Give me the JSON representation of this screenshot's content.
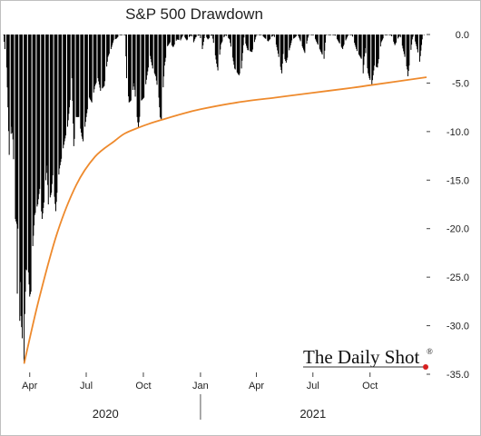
{
  "chart_data": {
    "type": "bar",
    "title": "S&P 500 Drawdown",
    "xlabel": "",
    "ylabel": "",
    "ylim": [
      -35,
      0
    ],
    "yticks": [
      "0.0",
      "-5.0",
      "-10.0",
      "-15.0",
      "-20.0",
      "-25.0",
      "-30.0",
      "-35.0"
    ],
    "ytick_values": [
      0,
      -5,
      -10,
      -15,
      -20,
      -25,
      -30,
      -35
    ],
    "xlim": [
      "2020-02-19",
      "2021-12-31"
    ],
    "xticks": [
      {
        "label": "Apr",
        "date": "2020-04-01"
      },
      {
        "label": "Jul",
        "date": "2020-07-01"
      },
      {
        "label": "Oct",
        "date": "2020-10-01"
      },
      {
        "label": "Jan",
        "date": "2021-01-01"
      },
      {
        "label": "Apr",
        "date": "2021-04-01"
      },
      {
        "label": "Jul",
        "date": "2021-07-01"
      },
      {
        "label": "Oct",
        "date": "2021-10-01"
      }
    ],
    "year_labels": [
      {
        "label": "2020",
        "date": "2020-08-01"
      },
      {
        "label": "2021",
        "date": "2021-07-01"
      }
    ],
    "year_divider_date": "2021-01-01",
    "axis_side": "right",
    "grid": false,
    "legend": "none",
    "bar_color": "#000000",
    "series": [
      {
        "kind": "bar",
        "color": "#000000",
        "points": [
          [
            "2020-02-19",
            0
          ],
          [
            "2020-02-21",
            -1.5
          ],
          [
            "2020-02-24",
            -3.4
          ],
          [
            "2020-02-26",
            -7.5
          ],
          [
            "2020-02-28",
            -12.4
          ],
          [
            "2020-03-03",
            -9.5
          ],
          [
            "2020-03-05",
            -10.8
          ],
          [
            "2020-03-09",
            -19
          ],
          [
            "2020-03-11",
            -19.5
          ],
          [
            "2020-03-12",
            -26.7
          ],
          [
            "2020-03-13",
            -20
          ],
          [
            "2020-03-16",
            -29.5
          ],
          [
            "2020-03-17",
            -25.5
          ],
          [
            "2020-03-18",
            -29
          ],
          [
            "2020-03-20",
            -31.3
          ],
          [
            "2020-03-23",
            -33.9
          ],
          [
            "2020-03-24",
            -28.8
          ],
          [
            "2020-03-26",
            -24.2
          ],
          [
            "2020-03-30",
            -24.5
          ],
          [
            "2020-04-01",
            -27
          ],
          [
            "2020-04-03",
            -26.5
          ],
          [
            "2020-04-06",
            -21.8
          ],
          [
            "2020-04-09",
            -18.6
          ],
          [
            "2020-04-14",
            -17.5
          ],
          [
            "2020-04-17",
            -15.9
          ],
          [
            "2020-04-21",
            -19
          ],
          [
            "2020-04-24",
            -17.3
          ],
          [
            "2020-04-29",
            -13.5
          ],
          [
            "2020-05-01",
            -17.5
          ],
          [
            "2020-05-06",
            -16.3
          ],
          [
            "2020-05-08",
            -14.5
          ],
          [
            "2020-05-13",
            -18.2
          ],
          [
            "2020-05-15",
            -16.3
          ],
          [
            "2020-05-19",
            -13.8
          ],
          [
            "2020-05-22",
            -12.8
          ],
          [
            "2020-05-27",
            -11
          ],
          [
            "2020-06-01",
            -9.5
          ],
          [
            "2020-06-04",
            -7.5
          ],
          [
            "2020-06-08",
            -4.5
          ],
          [
            "2020-06-11",
            -11.5
          ],
          [
            "2020-06-15",
            -8.5
          ],
          [
            "2020-06-19",
            -8.5
          ],
          [
            "2020-06-24",
            -10.5
          ],
          [
            "2020-06-26",
            -11
          ],
          [
            "2020-07-01",
            -8.5
          ],
          [
            "2020-07-06",
            -6.5
          ],
          [
            "2020-07-10",
            -7
          ],
          [
            "2020-07-15",
            -5.3
          ],
          [
            "2020-07-20",
            -4.5
          ],
          [
            "2020-07-24",
            -5.8
          ],
          [
            "2020-07-30",
            -5.3
          ],
          [
            "2020-08-05",
            -2.3
          ],
          [
            "2020-08-10",
            -1.5
          ],
          [
            "2020-08-14",
            -0.6
          ],
          [
            "2020-08-19",
            -0.4
          ],
          [
            "2020-08-24",
            0
          ],
          [
            "2020-08-28",
            0
          ],
          [
            "2020-09-02",
            0
          ],
          [
            "2020-09-04",
            -4.5
          ],
          [
            "2020-09-08",
            -7
          ],
          [
            "2020-09-11",
            -6.8
          ],
          [
            "2020-09-16",
            -5
          ],
          [
            "2020-09-21",
            -8.5
          ],
          [
            "2020-09-23",
            -9.6
          ],
          [
            "2020-09-28",
            -6.8
          ],
          [
            "2020-10-02",
            -6.5
          ],
          [
            "2020-10-07",
            -4.2
          ],
          [
            "2020-10-12",
            -2.2
          ],
          [
            "2020-10-16",
            -3.5
          ],
          [
            "2020-10-21",
            -4.3
          ],
          [
            "2020-10-26",
            -6.5
          ],
          [
            "2020-10-28",
            -8.5
          ],
          [
            "2020-10-30",
            -8.8
          ],
          [
            "2020-11-04",
            -3.2
          ],
          [
            "2020-11-09",
            -1.2
          ],
          [
            "2020-11-13",
            -0.8
          ],
          [
            "2020-11-18",
            -1.3
          ],
          [
            "2020-11-24",
            -0.5
          ],
          [
            "2020-11-30",
            -0.6
          ],
          [
            "2020-12-04",
            0
          ],
          [
            "2020-12-10",
            -0.6
          ],
          [
            "2020-12-17",
            0
          ],
          [
            "2020-12-21",
            -0.8
          ],
          [
            "2020-12-24",
            -0.3
          ],
          [
            "2020-12-31",
            0
          ],
          [
            "2021-01-04",
            -1.5
          ],
          [
            "2021-01-08",
            0
          ],
          [
            "2021-01-13",
            -0.5
          ],
          [
            "2021-01-20",
            0
          ],
          [
            "2021-01-27",
            -3
          ],
          [
            "2021-01-29",
            -3.7
          ],
          [
            "2021-02-03",
            -1
          ],
          [
            "2021-02-10",
            0
          ],
          [
            "2021-02-17",
            -0.5
          ],
          [
            "2021-02-25",
            -3.5
          ],
          [
            "2021-03-04",
            -4.2
          ],
          [
            "2021-03-08",
            -3.5
          ],
          [
            "2021-03-12",
            -0.3
          ],
          [
            "2021-03-18",
            -1.6
          ],
          [
            "2021-03-25",
            -1.8
          ],
          [
            "2021-04-01",
            0
          ],
          [
            "2021-04-09",
            0
          ],
          [
            "2021-04-20",
            -0.7
          ],
          [
            "2021-04-29",
            0
          ],
          [
            "2021-05-04",
            -1.3
          ],
          [
            "2021-05-12",
            -4
          ],
          [
            "2021-05-14",
            -2
          ],
          [
            "2021-05-19",
            -2.9
          ],
          [
            "2021-05-28",
            -0.6
          ],
          [
            "2021-06-07",
            0
          ],
          [
            "2021-06-18",
            -1.9
          ],
          [
            "2021-06-24",
            0
          ],
          [
            "2021-07-02",
            0
          ],
          [
            "2021-07-08",
            -0.9
          ],
          [
            "2021-07-19",
            -2.5
          ],
          [
            "2021-07-22",
            0
          ],
          [
            "2021-08-05",
            0
          ],
          [
            "2021-08-18",
            -1.5
          ],
          [
            "2021-08-19",
            -1.2
          ],
          [
            "2021-08-27",
            0
          ],
          [
            "2021-09-02",
            0
          ],
          [
            "2021-09-10",
            -1.7
          ],
          [
            "2021-09-17",
            -2.5
          ],
          [
            "2021-09-20",
            -4
          ],
          [
            "2021-09-23",
            -1.4
          ],
          [
            "2021-09-28",
            -4
          ],
          [
            "2021-09-30",
            -4.5
          ],
          [
            "2021-10-04",
            -5.2
          ],
          [
            "2021-10-08",
            -3.2
          ],
          [
            "2021-10-13",
            -3.4
          ],
          [
            "2021-10-19",
            -0.8
          ],
          [
            "2021-10-25",
            0
          ],
          [
            "2021-11-04",
            0
          ],
          [
            "2021-11-10",
            -1.1
          ],
          [
            "2021-11-18",
            0
          ],
          [
            "2021-11-26",
            -2.3
          ],
          [
            "2021-11-30",
            -3.6
          ],
          [
            "2021-12-01",
            -4.3
          ],
          [
            "2021-12-03",
            -3.2
          ],
          [
            "2021-12-08",
            -0.5
          ],
          [
            "2021-12-10",
            0
          ],
          [
            "2021-12-15",
            -1.2
          ],
          [
            "2021-12-20",
            -2.8
          ],
          [
            "2021-12-24",
            -0.5
          ],
          [
            "2021-12-27",
            0
          ]
        ]
      },
      {
        "kind": "line",
        "color": "#ee8a2d",
        "points": [
          [
            "2020-03-23",
            -33.9
          ],
          [
            "2020-04-15",
            -27.5
          ],
          [
            "2020-05-15",
            -20.5
          ],
          [
            "2020-06-15",
            -15.5
          ],
          [
            "2020-07-15",
            -12.6
          ],
          [
            "2020-08-15",
            -11
          ],
          [
            "2020-09-01",
            -10.2
          ],
          [
            "2020-09-23",
            -9.6
          ],
          [
            "2020-10-10",
            -9.2
          ],
          [
            "2020-10-30",
            -8.8
          ],
          [
            "2020-12-01",
            -8.2
          ],
          [
            "2021-01-01",
            -7.7
          ],
          [
            "2021-03-01",
            -7
          ],
          [
            "2021-05-01",
            -6.5
          ],
          [
            "2021-07-01",
            -6
          ],
          [
            "2021-09-01",
            -5.5
          ],
          [
            "2021-10-04",
            -5.2
          ],
          [
            "2021-12-31",
            -4.4
          ]
        ]
      }
    ]
  },
  "brand": {
    "text": "The Daily Shot",
    "mark": "®",
    "dot_color": "#d62020"
  }
}
